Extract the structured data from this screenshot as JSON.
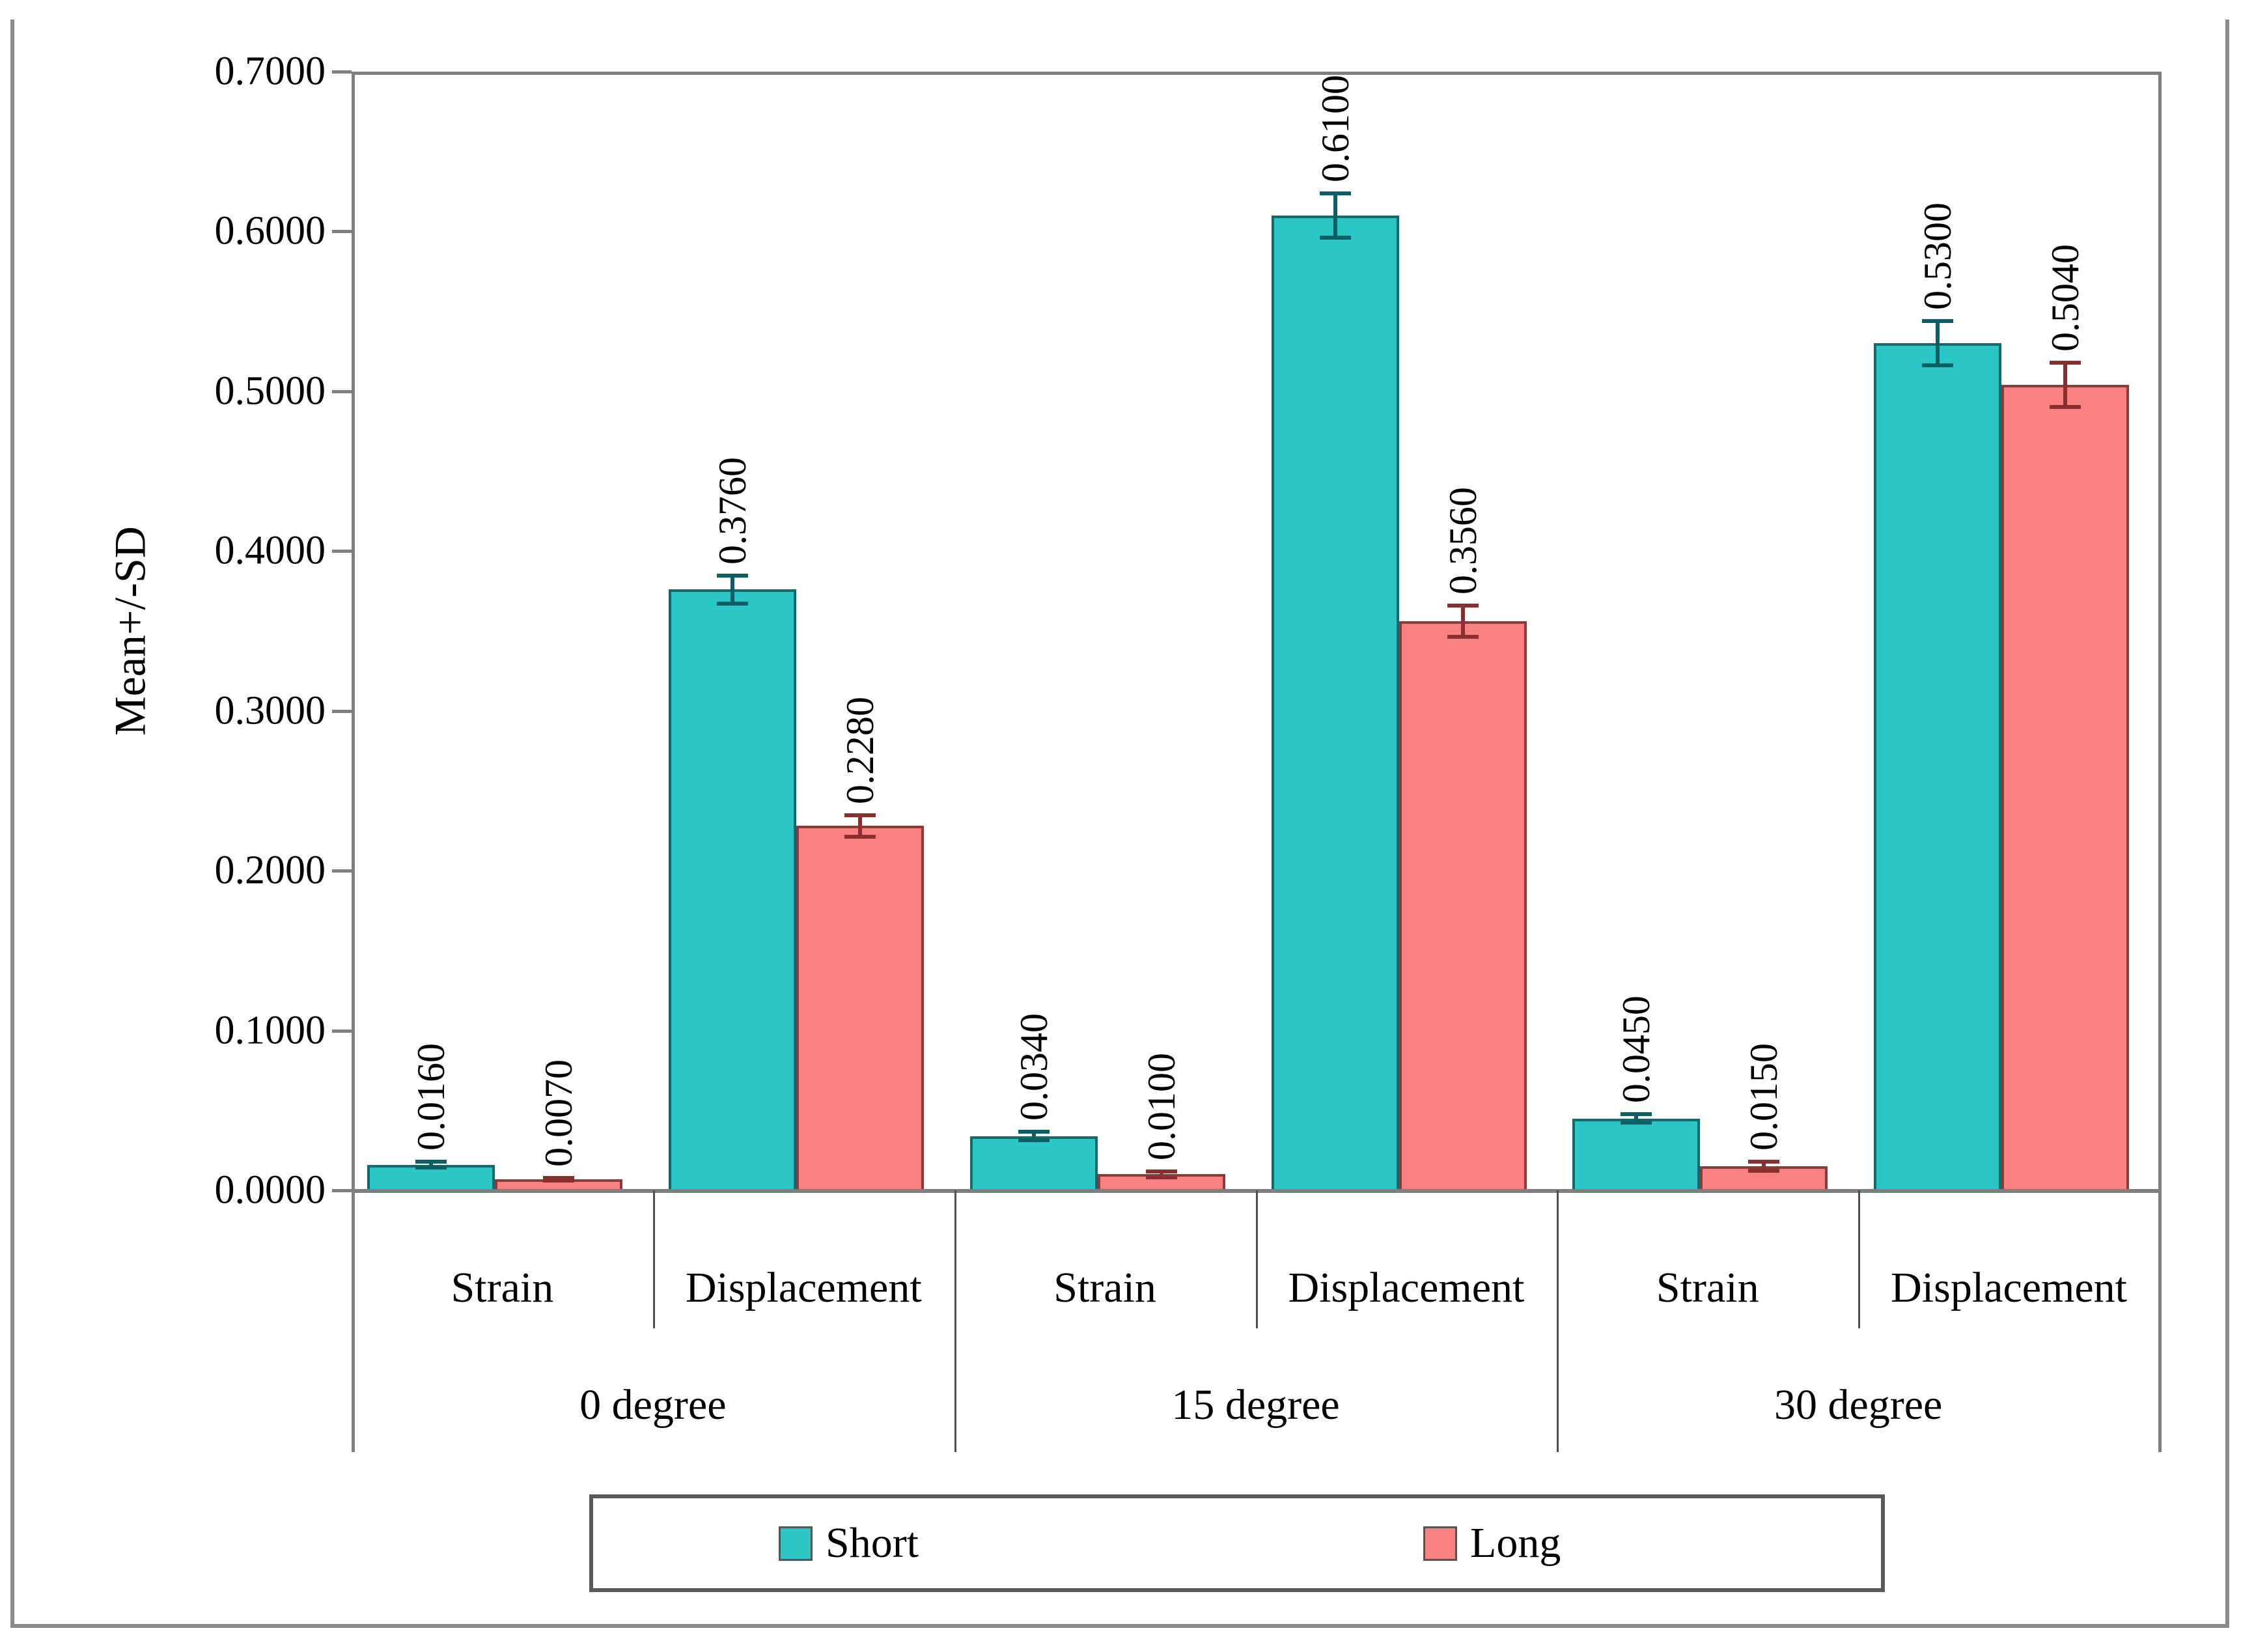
{
  "figure": {
    "border_color": "#8a8a8a",
    "frame_color": "#7f7f7f",
    "background": "#ffffff"
  },
  "chart_data": {
    "type": "bar",
    "title": "",
    "xlabel": "",
    "ylabel": "Mean+/-SD",
    "ylim": [
      0.0,
      0.7
    ],
    "ytick_step": 0.1,
    "ytick_labels": [
      "0.0000",
      "0.1000",
      "0.2000",
      "0.3000",
      "0.4000",
      "0.5000",
      "0.6000",
      "0.7000"
    ],
    "grid": false,
    "error_bars": "plus-minus SD with caps",
    "legend_position": "bottom-center",
    "groups": [
      "0 degree",
      "15 degree",
      "30 degree"
    ],
    "subcategories": [
      "Strain",
      "Displacement"
    ],
    "cell_order": [
      "0 degree / Strain",
      "0 degree / Displacement",
      "15 degree / Strain",
      "15 degree / Displacement",
      "30 degree / Strain",
      "30 degree / Displacement"
    ],
    "series": [
      {
        "name": "Short",
        "color": "#2bc6c6",
        "border_color": "#0c6b6f",
        "error_color": "#0d5f66",
        "values": [
          0.016,
          0.376,
          0.034,
          0.61,
          0.045,
          0.53
        ],
        "sd": [
          0.003,
          0.01,
          0.004,
          0.015,
          0.004,
          0.015
        ],
        "labels": [
          "0.0160",
          "0.3760",
          "0.0340",
          "0.6100",
          "0.0450",
          "0.5300"
        ]
      },
      {
        "name": "Long",
        "color": "#f98181",
        "border_color": "#8f3a3a",
        "error_color": "#8a2f2f",
        "values": [
          0.007,
          0.228,
          0.01,
          0.356,
          0.015,
          0.504
        ],
        "sd": [
          0.002,
          0.008,
          0.003,
          0.011,
          0.004,
          0.015
        ],
        "labels": [
          "0.0070",
          "0.2280",
          "0.0100",
          "0.3560",
          "0.0150",
          "0.5040"
        ]
      }
    ],
    "legend": {
      "labels": [
        "Short",
        "Long"
      ]
    }
  }
}
